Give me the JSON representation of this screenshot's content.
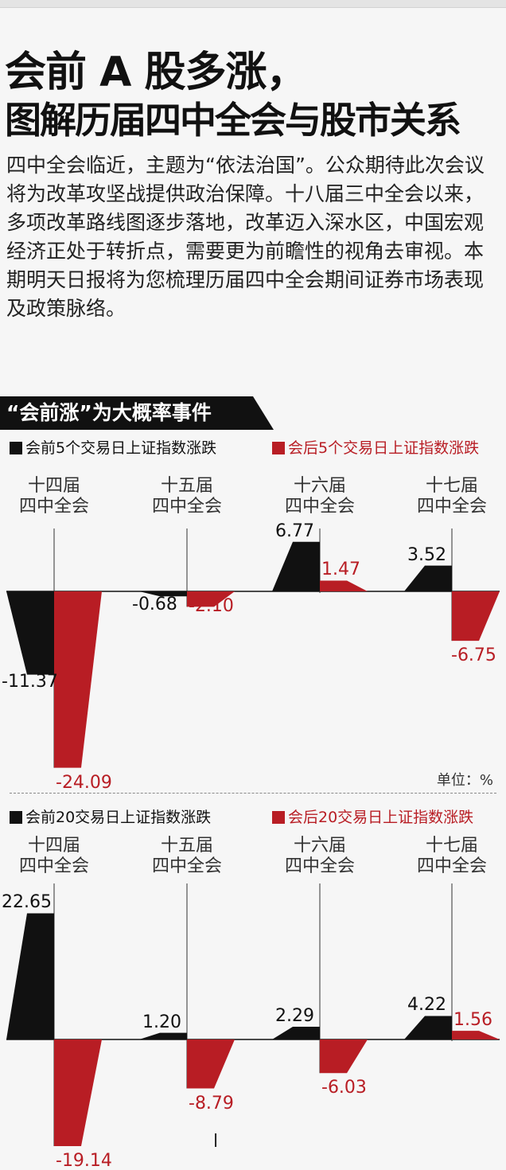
{
  "title_line1": "会前 A 股多涨，",
  "title_line2": "图解历届四中全会与股市关系",
  "intro": "四中全会临近，主题为“依法治国”。公众期待此次会议将为改革攻坚战提供政治保障。十八届三中全会以来，多项改革路线图逐步落地，改革迈入深水区，中国宏观经济正处于转折点，需要更为前瞻性的视角去审视。本期明天日报将为您梳理历届四中全会期间证券市场表现及政策脉络。",
  "section_title": "“会前涨”为大概率事件",
  "unit_label": "单位：%",
  "cursor_mark": "l",
  "colors": {
    "before": "#111111",
    "after": "#b81d24"
  },
  "chart_data": [
    {
      "type": "bar",
      "categories": [
        "十四届\n四中全会",
        "十五届\n四中全会",
        "十六届\n四中全会",
        "十七届\n四中全会"
      ],
      "series": [
        {
          "name": "会前5个交易日上证指数涨跌",
          "values": [
            -11.37,
            -0.68,
            6.77,
            3.52
          ]
        },
        {
          "name": "会后5个交易日上证指数涨跌",
          "values": [
            -24.09,
            -2.1,
            1.47,
            -6.75
          ]
        }
      ],
      "value_labels": [
        [
          "-11.37",
          "-0.68",
          "6.77",
          "3.52"
        ],
        [
          "-24.09",
          "-2.10",
          "1.47",
          "-6.75"
        ]
      ]
    },
    {
      "type": "bar",
      "categories": [
        "十四届\n四中全会",
        "十五届\n四中全会",
        "十六届\n四中全会",
        "十七届\n四中全会"
      ],
      "series": [
        {
          "name": "会前20交易日上证指数涨跌",
          "values": [
            22.65,
            1.2,
            2.29,
            4.22
          ]
        },
        {
          "name": "会后20交易日上证指数涨跌",
          "values": [
            -19.14,
            -8.79,
            -6.03,
            1.56
          ]
        }
      ],
      "value_labels": [
        [
          "22.65",
          "1.20",
          "2.29",
          "4.22"
        ],
        [
          "-19.14",
          "-8.79",
          "-6.03",
          "1.56"
        ]
      ]
    }
  ]
}
